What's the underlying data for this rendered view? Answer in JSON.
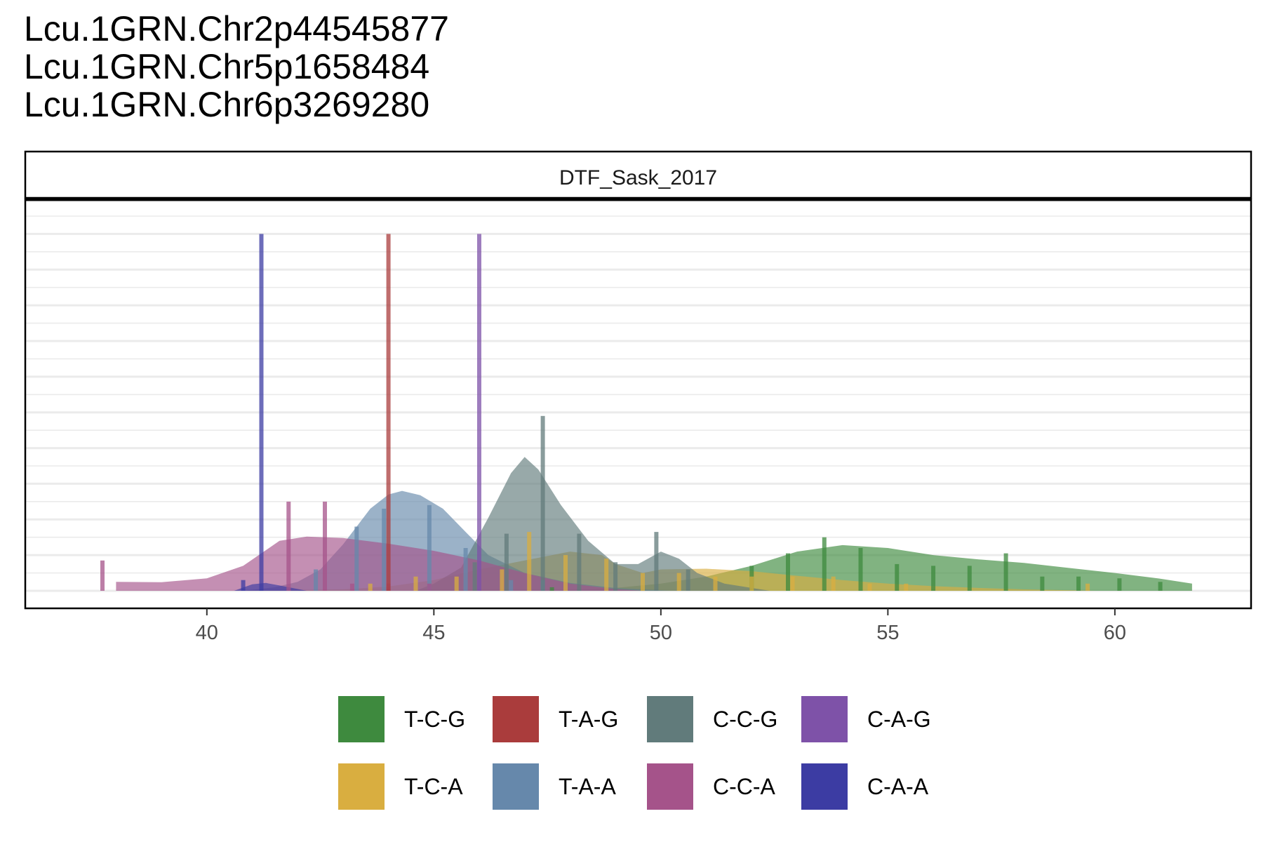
{
  "title_lines": [
    "Lcu.1GRN.Chr2p44545877",
    "Lcu.1GRN.Chr5p1658484",
    "Lcu.1GRN.Chr6p3269280"
  ],
  "chart_data": {
    "type": "area",
    "facet_label": "DTF_Sask_2017",
    "xlim": [
      36.0,
      63.0
    ],
    "ylim": [
      0,
      1.05
    ],
    "x_ticks": [
      40,
      45,
      50,
      55,
      60
    ],
    "legend_position": "bottom",
    "y_tick_labels_shown": false,
    "series": [
      {
        "name": "T-C-G",
        "color": "#3e8a3e",
        "density": [
          [
            47.6,
            0.0
          ],
          [
            49,
            0.008
          ],
          [
            50,
            0.02
          ],
          [
            51,
            0.04
          ],
          [
            52,
            0.07
          ],
          [
            53,
            0.11
          ],
          [
            54,
            0.128
          ],
          [
            55,
            0.12
          ],
          [
            56,
            0.1
          ],
          [
            57,
            0.088
          ],
          [
            58,
            0.078
          ],
          [
            59,
            0.064
          ],
          [
            60,
            0.05
          ],
          [
            61,
            0.034
          ],
          [
            61.7,
            0.02
          ]
        ],
        "ticks": [
          [
            47.6,
            0.01
          ],
          [
            52.0,
            0.07
          ],
          [
            52.8,
            0.105
          ],
          [
            53.6,
            0.15
          ],
          [
            54.4,
            0.12
          ],
          [
            55.2,
            0.075
          ],
          [
            56.0,
            0.07
          ],
          [
            56.8,
            0.07
          ],
          [
            57.6,
            0.105
          ],
          [
            58.4,
            0.04
          ],
          [
            59.2,
            0.04
          ],
          [
            60.1,
            0.035
          ],
          [
            61.0,
            0.025
          ]
        ]
      },
      {
        "name": "T-C-A",
        "color": "#d9ae40",
        "density": [
          [
            41.0,
            0.0
          ],
          [
            43,
            0.004
          ],
          [
            44,
            0.012
          ],
          [
            45,
            0.03
          ],
          [
            46,
            0.06
          ],
          [
            47,
            0.085
          ],
          [
            48,
            0.11
          ],
          [
            48.7,
            0.1
          ],
          [
            49,
            0.075
          ],
          [
            49.6,
            0.05
          ],
          [
            50,
            0.06
          ],
          [
            51,
            0.062
          ],
          [
            52,
            0.055
          ],
          [
            53,
            0.042
          ],
          [
            54,
            0.03
          ],
          [
            55,
            0.02
          ],
          [
            56,
            0.013
          ],
          [
            57,
            0.008
          ],
          [
            58,
            0.004
          ],
          [
            59.6,
            0.0
          ]
        ],
        "ticks": [
          [
            43.6,
            0.02
          ],
          [
            44.6,
            0.04
          ],
          [
            45.5,
            0.04
          ],
          [
            46.5,
            0.06
          ],
          [
            47.1,
            0.165
          ],
          [
            47.9,
            0.1
          ],
          [
            48.8,
            0.09
          ],
          [
            49.6,
            0.05
          ],
          [
            50.4,
            0.05
          ],
          [
            51.2,
            0.04
          ],
          [
            52.0,
            0.04
          ],
          [
            52.9,
            0.04
          ],
          [
            53.8,
            0.04
          ],
          [
            54.6,
            0.02
          ],
          [
            55.4,
            0.02
          ],
          [
            59.4,
            0.02
          ]
        ]
      },
      {
        "name": "T-A-A",
        "color": "#6688ab",
        "density": [
          [
            40.8,
            0.0
          ],
          [
            41.5,
            0.01
          ],
          [
            42,
            0.025
          ],
          [
            42.5,
            0.06
          ],
          [
            43,
            0.13
          ],
          [
            43.6,
            0.23
          ],
          [
            44,
            0.27
          ],
          [
            44.3,
            0.28
          ],
          [
            44.7,
            0.268
          ],
          [
            45.2,
            0.23
          ],
          [
            45.7,
            0.165
          ],
          [
            46.2,
            0.1
          ],
          [
            47,
            0.05
          ],
          [
            48,
            0.022
          ],
          [
            49,
            0.008
          ],
          [
            50.2,
            0.0
          ]
        ],
        "ticks": [
          [
            42.4,
            0.06
          ],
          [
            43.3,
            0.18
          ],
          [
            43.9,
            0.23
          ],
          [
            44.9,
            0.24
          ],
          [
            45.7,
            0.12
          ],
          [
            46.7,
            0.03
          ],
          [
            47.4,
            0.03
          ]
        ]
      },
      {
        "name": "C-C-G",
        "color": "#617b7b",
        "density": [
          [
            44.6,
            0.0
          ],
          [
            45,
            0.02
          ],
          [
            45.6,
            0.065
          ],
          [
            46.2,
            0.205
          ],
          [
            46.7,
            0.33
          ],
          [
            47.0,
            0.375
          ],
          [
            47.3,
            0.34
          ],
          [
            47.8,
            0.24
          ],
          [
            48.4,
            0.14
          ],
          [
            49.0,
            0.075
          ],
          [
            49.5,
            0.075
          ],
          [
            50.0,
            0.11
          ],
          [
            50.4,
            0.09
          ],
          [
            50.8,
            0.05
          ],
          [
            51.4,
            0.02
          ],
          [
            52.4,
            0.0
          ]
        ],
        "ticks": [
          [
            45.9,
            0.08
          ],
          [
            46.6,
            0.16
          ],
          [
            47.4,
            0.49
          ],
          [
            48.2,
            0.16
          ],
          [
            49.0,
            0.08
          ],
          [
            49.9,
            0.165
          ],
          [
            50.6,
            0.06
          ]
        ]
      },
      {
        "name": "C-C-A",
        "color": "#a5538a",
        "density": [
          [
            38.0,
            0.025
          ],
          [
            39,
            0.024
          ],
          [
            40,
            0.035
          ],
          [
            40.8,
            0.07
          ],
          [
            41.6,
            0.14
          ],
          [
            42.2,
            0.152
          ],
          [
            43,
            0.148
          ],
          [
            44,
            0.132
          ],
          [
            45,
            0.112
          ],
          [
            46,
            0.085
          ],
          [
            47,
            0.05
          ],
          [
            48,
            0.02
          ],
          [
            49,
            0.005
          ],
          [
            49.6,
            0.0
          ]
        ],
        "ticks": [
          [
            37.7,
            0.085
          ],
          [
            41.8,
            0.25
          ],
          [
            42.6,
            0.25
          ],
          [
            43.2,
            0.02
          ],
          [
            44.0,
            0.02
          ],
          [
            44.9,
            0.02
          ]
        ]
      },
      {
        "name": "T-A-G",
        "color": "#aa3c3c",
        "density": [],
        "ticks": [
          [
            44.0,
            1.0
          ]
        ]
      },
      {
        "name": "C-A-G",
        "color": "#7e52a8",
        "density": [],
        "ticks": [
          [
            46.0,
            1.0
          ]
        ]
      },
      {
        "name": "C-A-A",
        "color": "#3c3ca3",
        "density": [
          [
            40.6,
            0.0
          ],
          [
            41.0,
            0.018
          ],
          [
            41.3,
            0.022
          ],
          [
            41.6,
            0.015
          ],
          [
            42.2,
            0.0
          ]
        ],
        "ticks": [
          [
            40.8,
            0.03
          ],
          [
            41.2,
            1.0
          ]
        ]
      }
    ]
  },
  "legend_order": [
    "T-C-G",
    "T-A-G",
    "C-C-G",
    "C-A-G",
    "T-C-A",
    "T-A-A",
    "C-C-A",
    "C-A-A"
  ]
}
